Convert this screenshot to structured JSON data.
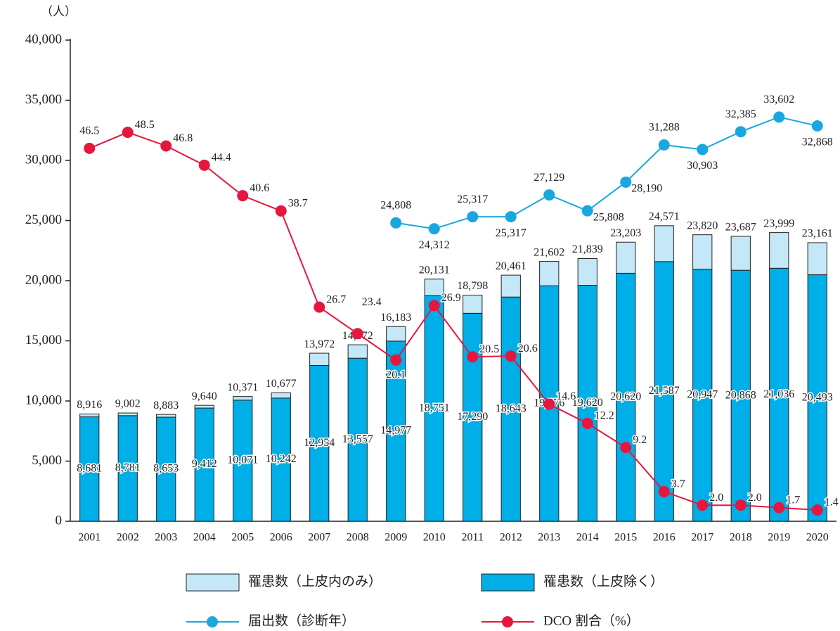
{
  "chart_data": {
    "type": "bar",
    "y_label": "（人）",
    "categories": [
      "2001",
      "2002",
      "2003",
      "2004",
      "2005",
      "2006",
      "2007",
      "2008",
      "2009",
      "2010",
      "2011",
      "2012",
      "2013",
      "2014",
      "2015",
      "2016",
      "2017",
      "2018",
      "2019",
      "2020"
    ],
    "ylim": [
      0,
      40000
    ],
    "yticks": [
      0,
      {
        "value": 5000,
        "label": "5,000"
      },
      {
        "value": 10000,
        "label": "10,000"
      },
      {
        "value": 15000,
        "label": "15,000"
      },
      {
        "value": 20000,
        "label": "20,000"
      },
      {
        "value": 25000,
        "label": "25,000"
      },
      {
        "value": 30000,
        "label": "30,000"
      },
      {
        "value": 35000,
        "label": "35,000"
      },
      {
        "value": 40000,
        "label": "40,000"
      }
    ],
    "y2lim": [
      0,
      60
    ],
    "series": [
      {
        "name": "罹患数（上皮除く）",
        "type": "bar",
        "color": "#00aee8",
        "values": [
          8681,
          8781,
          8653,
          9412,
          10071,
          10242,
          12954,
          13557,
          14977,
          18751,
          17290,
          18643,
          19576,
          19620,
          20620,
          21587,
          20947,
          20868,
          21036,
          20493
        ],
        "value_labels": [
          "8,681",
          "8,781",
          "8,653",
          "9,412",
          "10,071",
          "10,242",
          "12,954",
          "13,557",
          "14,977",
          "18,751",
          "17,290",
          "18,643",
          "19,576",
          "19,620",
          "20,620",
          "21,587",
          "20,947",
          "20,868",
          "21,036",
          "20,493"
        ]
      },
      {
        "name": "罹患数（上皮内のみ）",
        "type": "bar",
        "color": "#c5e8f8",
        "values": [
          235,
          221,
          230,
          228,
          300,
          435,
          1018,
          1115,
          1206,
          1380,
          1508,
          1818,
          2026,
          2219,
          2583,
          2984,
          2873,
          2819,
          2963,
          2668
        ],
        "total_labels": [
          "8,916",
          "9,002",
          "8,883",
          "9,640",
          "10,371",
          "10,677",
          "13,972",
          "14,672",
          "16,183",
          "20,131",
          "18,798",
          "20,461",
          "21,602",
          "21,839",
          "23,203",
          "24,571",
          "23,820",
          "23,687",
          "23,999",
          "23,161"
        ]
      },
      {
        "name": "届出数（診断年）",
        "type": "line",
        "color": "#1aa7e0",
        "values": [
          null,
          null,
          null,
          null,
          null,
          null,
          null,
          null,
          24808,
          24312,
          25317,
          25317,
          27129,
          25808,
          28190,
          31288,
          30903,
          32385,
          33602,
          32868
        ],
        "value_labels": [
          null,
          null,
          null,
          null,
          null,
          null,
          null,
          null,
          "24,808",
          "24,312",
          "25,317",
          "25,317",
          "27,129",
          "25,808",
          "28,190",
          "31,288",
          "30,903",
          "32,385",
          "33,602",
          "32,868"
        ]
      },
      {
        "name": "DCO 割合（%）",
        "type": "line",
        "axis": "y2",
        "color": "#e5173f",
        "values": [
          46.5,
          48.5,
          46.8,
          44.4,
          40.6,
          38.7,
          26.7,
          23.4,
          20.1,
          26.9,
          20.5,
          20.6,
          14.6,
          12.2,
          9.2,
          3.7,
          2.0,
          2.0,
          1.7,
          1.4
        ],
        "value_labels": [
          "46.5",
          "48.5",
          "46.8",
          "44.4",
          "40.6",
          "38.7",
          "26.7",
          "23.4",
          "20.1",
          "26.9",
          "20.5",
          "20.6",
          "14.6",
          "12.2",
          "9.2",
          "3.7",
          "2.0",
          "2.0",
          "1.7",
          "1.4"
        ]
      }
    ]
  }
}
